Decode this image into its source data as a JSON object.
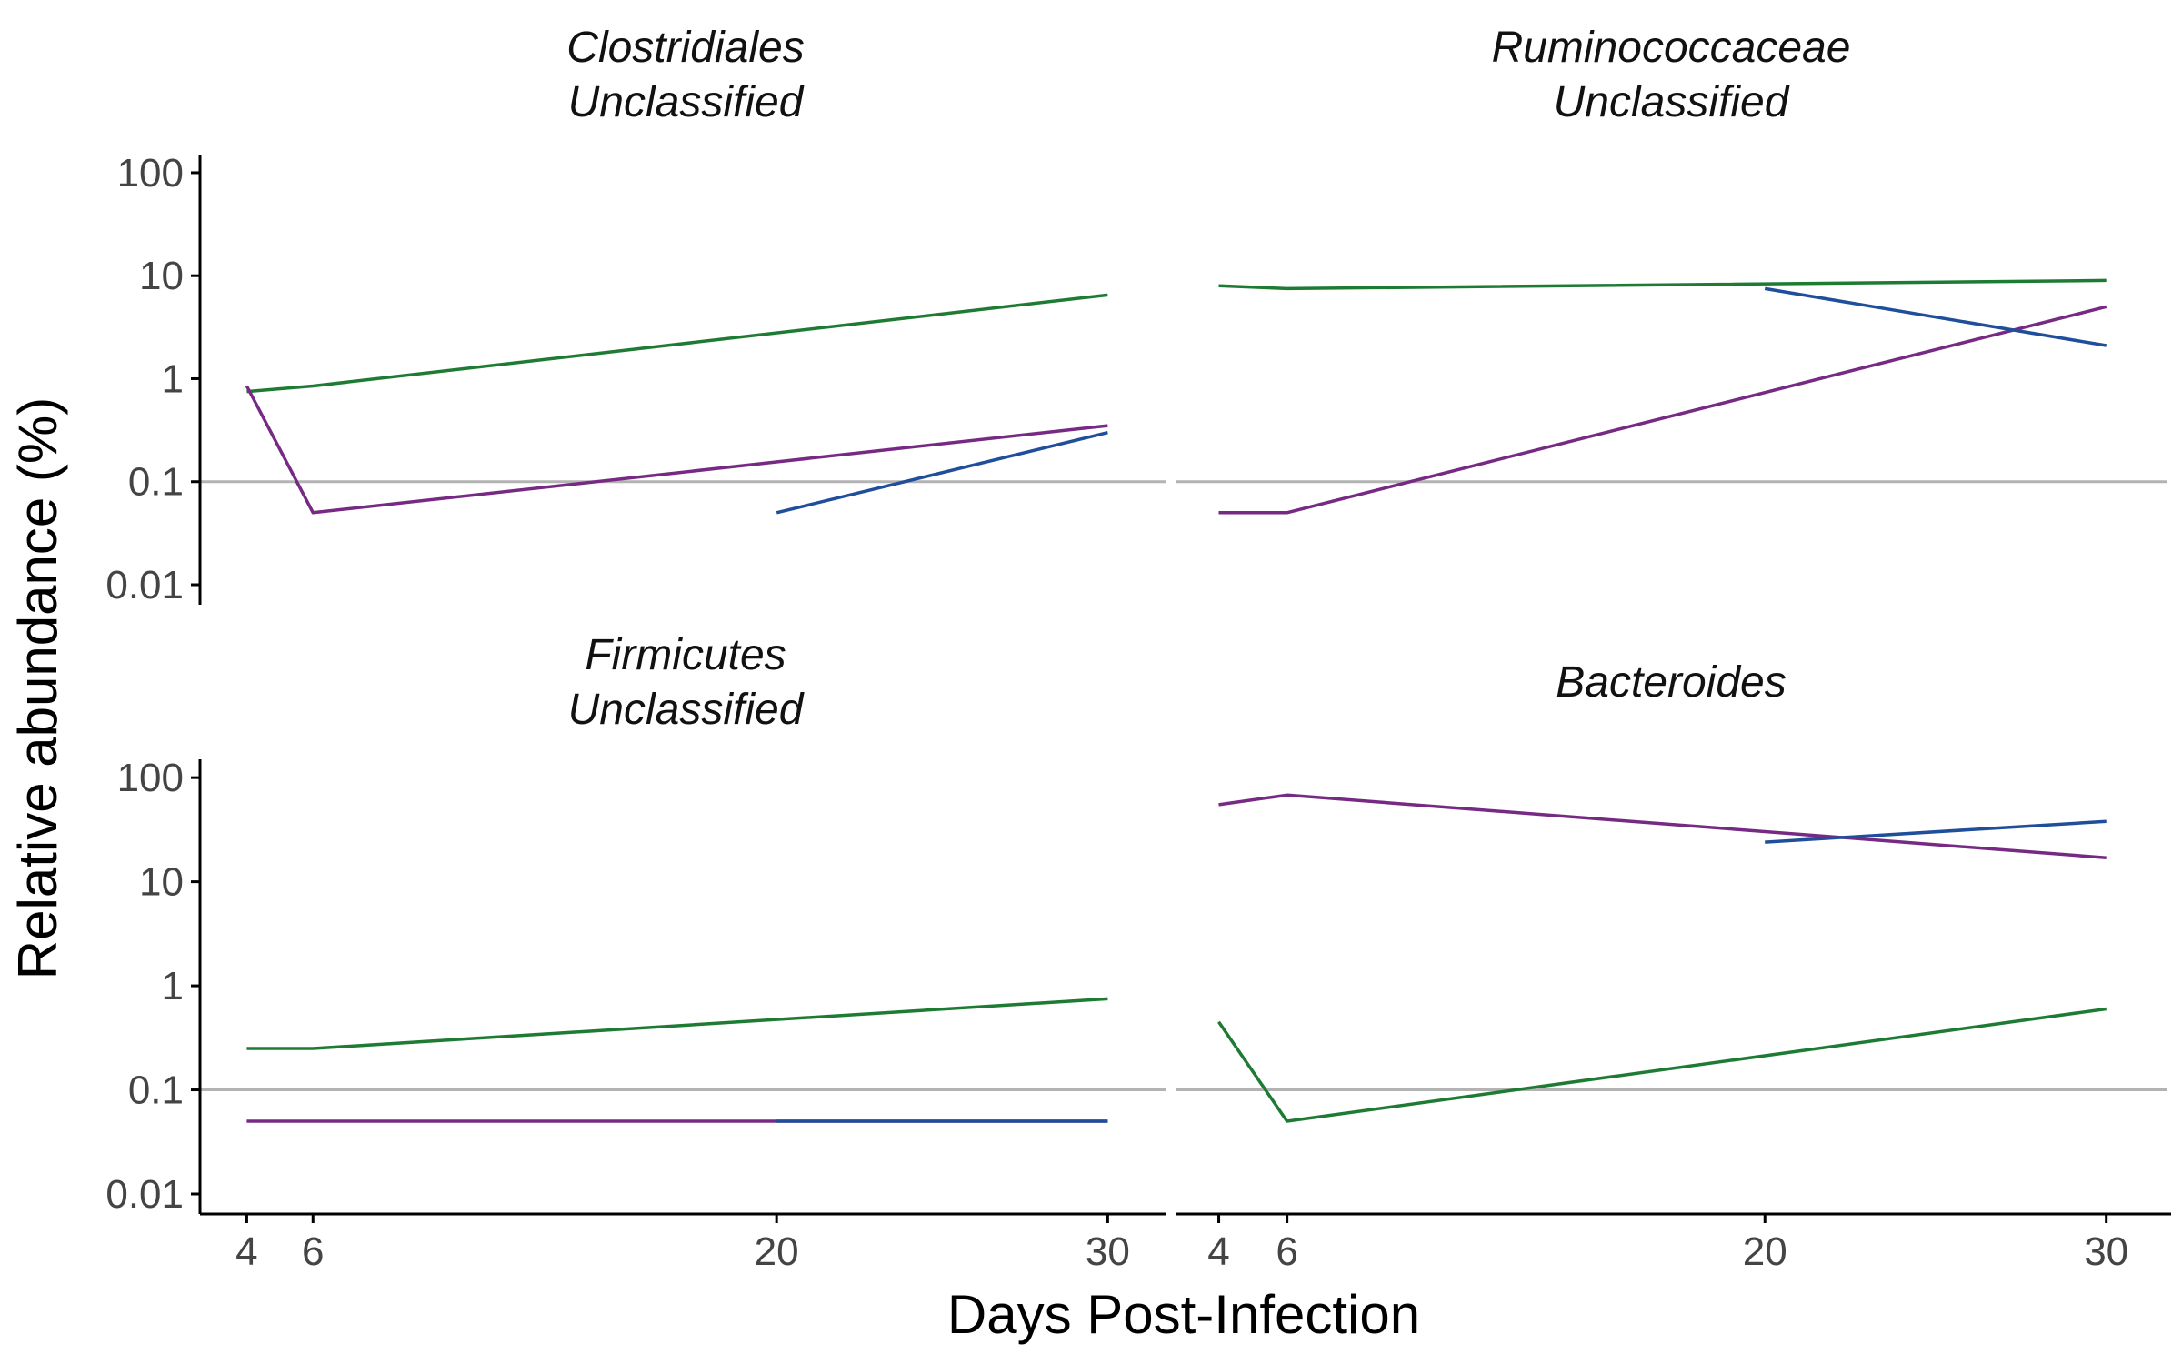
{
  "chart_data": {
    "type": "line",
    "xlabel": "Days Post-Infection",
    "ylabel": "Relative abundance (%)",
    "x_ticks": [
      4,
      6,
      20,
      30
    ],
    "y_scale": "log10",
    "y_ticks": [
      "0.01",
      "0.1",
      "1",
      "10",
      "100"
    ],
    "ylim": [
      0.01,
      150
    ],
    "xlim": [
      3,
      31.5
    ],
    "reference_line": 0.1,
    "grid": false,
    "legend": "none",
    "colors": {
      "green": "#1e7b34",
      "purple": "#762a83",
      "blue": "#1f4e9a"
    },
    "panels": [
      {
        "title_lines": [
          "Clostridiales",
          "Unclassified"
        ],
        "series": [
          {
            "color": "#1e7b34",
            "x": [
              4,
              6,
              30
            ],
            "y": [
              0.75,
              0.85,
              6.5
            ]
          },
          {
            "color": "#762a83",
            "x": [
              4,
              6,
              30
            ],
            "y": [
              0.85,
              0.05,
              0.35
            ]
          },
          {
            "color": "#1f4e9a",
            "x": [
              20,
              30
            ],
            "y": [
              0.05,
              0.3
            ]
          }
        ]
      },
      {
        "title_lines": [
          "Ruminococcaceae",
          "Unclassified"
        ],
        "series": [
          {
            "color": "#1e7b34",
            "x": [
              4,
              6,
              30
            ],
            "y": [
              8,
              7.5,
              9
            ]
          },
          {
            "color": "#762a83",
            "x": [
              4,
              6,
              30
            ],
            "y": [
              0.05,
              0.05,
              5
            ]
          },
          {
            "color": "#1f4e9a",
            "x": [
              20,
              30
            ],
            "y": [
              7.5,
              2.1
            ]
          }
        ]
      },
      {
        "title_lines": [
          "Firmicutes",
          "Unclassified"
        ],
        "series": [
          {
            "color": "#1e7b34",
            "x": [
              4,
              6,
              30
            ],
            "y": [
              0.25,
              0.25,
              0.75
            ]
          },
          {
            "color": "#762a83",
            "x": [
              4,
              6,
              30
            ],
            "y": [
              0.05,
              0.05,
              0.05
            ]
          },
          {
            "color": "#1f4e9a",
            "x": [
              20,
              30
            ],
            "y": [
              0.05,
              0.05
            ]
          }
        ]
      },
      {
        "title_lines": [
          "Bacteroides"
        ],
        "series": [
          {
            "color": "#762a83",
            "x": [
              4,
              6,
              30
            ],
            "y": [
              55,
              68,
              17
            ]
          },
          {
            "color": "#1f4e9a",
            "x": [
              20,
              30
            ],
            "y": [
              24,
              38
            ]
          },
          {
            "color": "#1e7b34",
            "x": [
              4,
              6,
              30
            ],
            "y": [
              0.45,
              0.05,
              0.6
            ]
          }
        ]
      }
    ]
  }
}
